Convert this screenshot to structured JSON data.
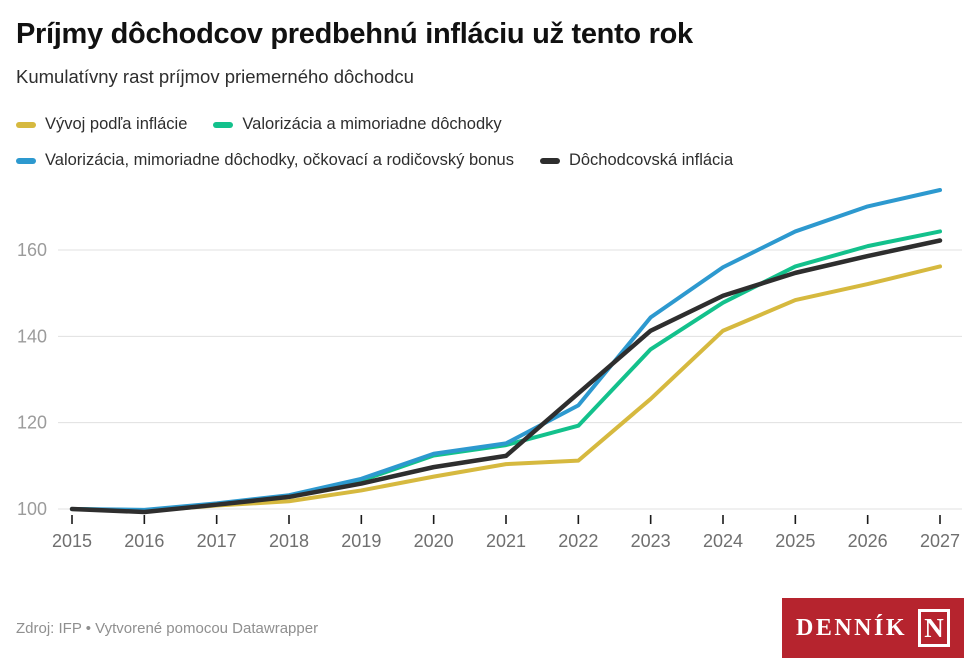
{
  "header": {
    "title": "Príjmy dôchodcov predbehnú infláciu už tento rok",
    "subtitle": "Kumulatívny rast príjmov priemerného dôchodcu"
  },
  "footer": {
    "source": "Zdroj: IFP • Vytvorené pomocou Datawrapper",
    "logo_text": "DENNÍK",
    "logo_n": "N",
    "logo_color": "#b6242e"
  },
  "chart_data": {
    "type": "line",
    "x": [
      2015,
      2016,
      2017,
      2018,
      2019,
      2020,
      2021,
      2022,
      2023,
      2024,
      2025,
      2026,
      2027
    ],
    "x_tick_labels": [
      "2015",
      "2016",
      "2017",
      "2018",
      "2019",
      "2020",
      "2021",
      "2022",
      "2023",
      "2024",
      "2025",
      "2026",
      "2027"
    ],
    "y_ticks": [
      100,
      120,
      140,
      160
    ],
    "ylim": [
      97,
      176
    ],
    "grid": "horizontal",
    "legend_position": "top",
    "colors": {
      "grid": "#e0e0e0",
      "y_tick_label": "#9b9b9b",
      "x_tick_label": "#6f6f6f",
      "tick_mark": "#1a1a1a"
    },
    "series": [
      {
        "name": "Vývoj podľa inflácie",
        "color": "#d6b93f",
        "values": [
          100,
          99.5,
          100.8,
          101.8,
          104.3,
          107.5,
          110.4,
          111.2,
          125.5,
          141.3,
          148.4,
          152.1,
          156.2
        ]
      },
      {
        "name": "Valorizácia a mimoriadne dôchodky",
        "color": "#13c18c",
        "values": [
          100,
          99.7,
          101.1,
          103.0,
          106.6,
          112.4,
          114.8,
          119.3,
          137.0,
          147.8,
          156.2,
          160.9,
          164.3
        ]
      },
      {
        "name": "Valorizácia, mimoriadne dôchodky, očkovací a rodičovský bonus",
        "color": "#2d99cf",
        "values": [
          100,
          99.8,
          101.3,
          103.2,
          107.0,
          112.8,
          115.2,
          124.0,
          144.4,
          156.0,
          164.3,
          170.1,
          173.9
        ]
      },
      {
        "name": "Dôchodcovská inflácia",
        "color": "#2e2e2e",
        "values": [
          100,
          99.3,
          101.0,
          102.8,
          105.9,
          109.7,
          112.3,
          126.8,
          141.3,
          149.4,
          154.7,
          158.6,
          162.2
        ]
      }
    ]
  }
}
